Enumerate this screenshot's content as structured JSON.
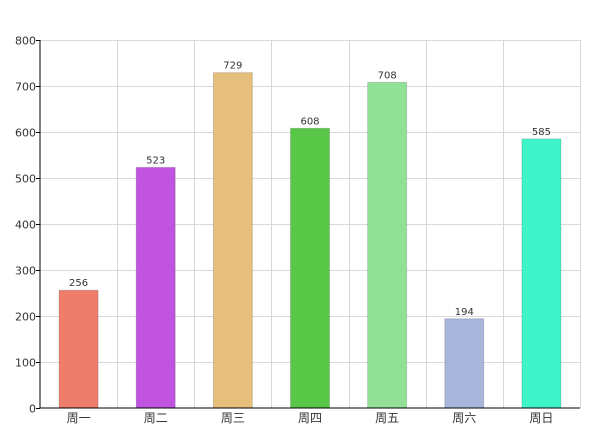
{
  "chart_data": {
    "type": "bar",
    "title": "",
    "xlabel": "",
    "ylabel": "",
    "categories": [
      "周一",
      "周二",
      "周三",
      "周四",
      "周五",
      "周六",
      "周日"
    ],
    "values": [
      256,
      523,
      729,
      608,
      708,
      194,
      585
    ],
    "data_labels": [
      "256",
      "523",
      "729",
      "608",
      "708",
      "194",
      "585"
    ],
    "colors": [
      "#ee7d6c",
      "#c053e0",
      "#e7bf7c",
      "#58c647",
      "#92e096",
      "#a9b6dc",
      "#3ff4c8"
    ],
    "ylim": [
      0,
      800
    ],
    "yticks": [
      0,
      100,
      200,
      300,
      400,
      500,
      600,
      700,
      800
    ],
    "ytick_labels": [
      "0",
      "100",
      "200",
      "300",
      "400",
      "500",
      "600",
      "700",
      "800"
    ],
    "grid": true,
    "legend": "none"
  }
}
